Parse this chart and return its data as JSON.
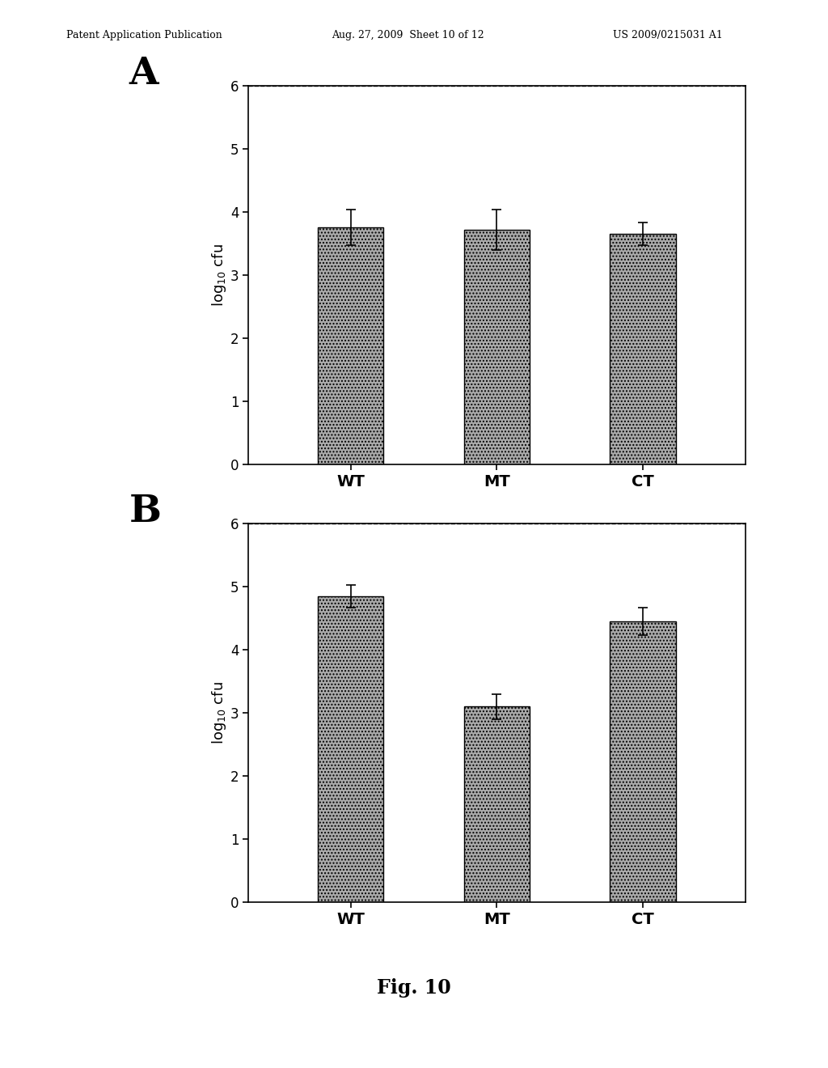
{
  "panel_A": {
    "categories": [
      "WT",
      "MT",
      "CT"
    ],
    "values": [
      3.75,
      3.72,
      3.65
    ],
    "errors": [
      0.28,
      0.32,
      0.18
    ],
    "ylabel": "log$_{10}$ cfu",
    "ylim": [
      0,
      6
    ],
    "yticks": [
      0,
      1,
      2,
      3,
      4,
      5,
      6
    ],
    "label": "A"
  },
  "panel_B": {
    "categories": [
      "WT",
      "MT",
      "CT"
    ],
    "values": [
      4.85,
      3.1,
      4.45
    ],
    "errors": [
      0.18,
      0.2,
      0.22
    ],
    "ylabel": "log$_{10}$ cfu",
    "ylim": [
      0,
      6
    ],
    "yticks": [
      0,
      1,
      2,
      3,
      4,
      5,
      6
    ],
    "label": "B"
  },
  "fig_label": "Fig. 10",
  "bar_color": "#aaaaaa",
  "bar_edgecolor": "#000000",
  "bar_width": 0.45,
  "header_left": "Patent Application Publication",
  "header_mid": "Aug. 27, 2009  Sheet 10 of 12",
  "header_right": "US 2009/0215031 A1",
  "background_color": "#ffffff",
  "hatch": "....",
  "dashed_line_y": 6
}
